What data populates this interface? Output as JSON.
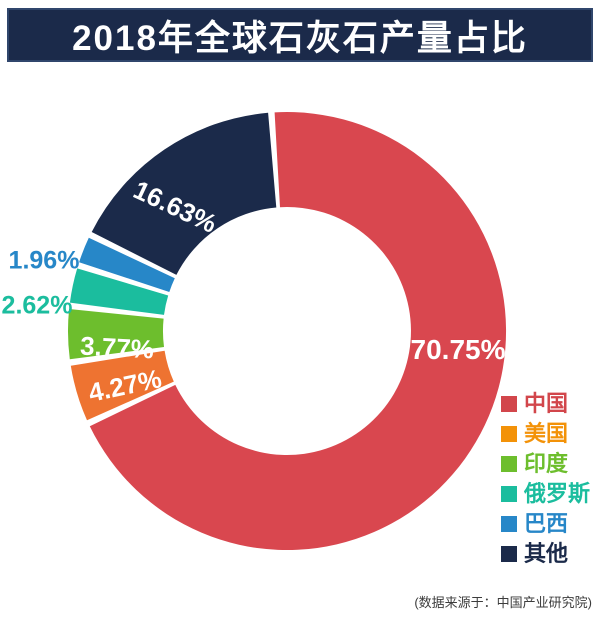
{
  "title": "2018年全球石灰石产量占比",
  "source_note": "(数据来源于：中国产业研究院)",
  "colors": {
    "background": "#FFFFFF",
    "banner_bg": "#1B2A4A",
    "banner_border": "#30466C",
    "banner_text": "#FFFFFF",
    "inside_label_text": "#FFFFFF",
    "source_text": "#3C3C3C"
  },
  "chart_data": {
    "type": "pie",
    "subtype": "donut",
    "title": "2018年全球石灰石产量占比",
    "unit": "%",
    "start_at_top": true,
    "clockwise": true,
    "legend_position": "right-bottom",
    "series": [
      {
        "id": "china",
        "name": "中国",
        "value": 70.75,
        "label": "70.75%",
        "color": "#D9474F",
        "legend_color": "#D2464B",
        "label_placement": "inside"
      },
      {
        "id": "usa",
        "name": "美国",
        "value": 4.27,
        "label": "4.27%",
        "color": "#EE7331",
        "legend_color": "#F39208",
        "label_placement": "inside"
      },
      {
        "id": "india",
        "name": "印度",
        "value": 3.77,
        "label": "3.77%",
        "color": "#6DBE2D",
        "legend_color": "#6DBE2D",
        "label_placement": "inside"
      },
      {
        "id": "russia",
        "name": "俄罗斯",
        "value": 2.62,
        "label": "2.62%",
        "color": "#1BBD9E",
        "legend_color": "#1BBD9E",
        "label_placement": "outside"
      },
      {
        "id": "brazil",
        "name": "巴西",
        "value": 1.96,
        "label": "1.96%",
        "color": "#2787C8",
        "legend_color": "#2787C8",
        "label_placement": "outside"
      },
      {
        "id": "other",
        "name": "其他",
        "value": 16.63,
        "label": "16.63%",
        "color": "#1B2A4A",
        "legend_color": "#1B2A4A",
        "label_placement": "inside"
      }
    ]
  }
}
